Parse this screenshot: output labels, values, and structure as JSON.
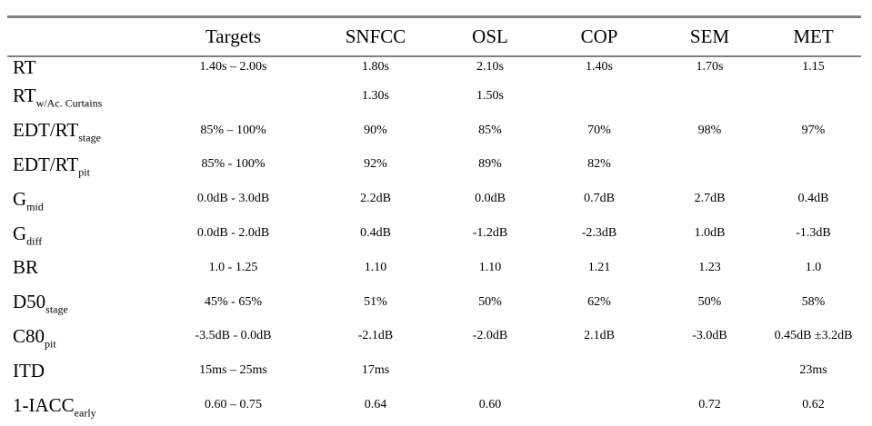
{
  "table": {
    "headers": [
      "",
      "Targets",
      "SNFCC",
      "OSL",
      "COP",
      "SEM",
      "MET"
    ],
    "rows": [
      {
        "param": "RT",
        "sub": "",
        "values": [
          "1.40s – 2.00s",
          "1.80s",
          "2.10s",
          "1.40s",
          "1.70s",
          "1.15"
        ]
      },
      {
        "param": "RT",
        "sub": "w/Ac. Curtains",
        "values": [
          "",
          "1.30s",
          "1.50s",
          "",
          "",
          ""
        ]
      },
      {
        "param": "EDT/RT",
        "sub": "stage",
        "values": [
          "85% – 100%",
          "90%",
          "85%",
          "70%",
          "98%",
          "97%"
        ]
      },
      {
        "param": "EDT/RT",
        "sub": "pit",
        "values": [
          "85% - 100%",
          "92%",
          "89%",
          "82%",
          "",
          ""
        ]
      },
      {
        "param": "G",
        "sub": "mid",
        "values": [
          "0.0dB - 3.0dB",
          "2.2dB",
          "0.0dB",
          "0.7dB",
          "2.7dB",
          "0.4dB"
        ]
      },
      {
        "param": "G",
        "sub": "diff",
        "values": [
          "0.0dB - 2.0dB",
          "0.4dB",
          "-1.2dB",
          "-2.3dB",
          "1.0dB",
          "-1.3dB"
        ]
      },
      {
        "param": "BR",
        "sub": "",
        "values": [
          "1.0 - 1.25",
          "1.10",
          "1.10",
          "1.21",
          "1.23",
          "1.0"
        ]
      },
      {
        "param": "D50",
        "sub": "stage",
        "values": [
          "45% - 65%",
          "51%",
          "50%",
          "62%",
          "50%",
          "58%"
        ]
      },
      {
        "param": "C80",
        "sub": "pit",
        "values": [
          "-3.5dB - 0.0dB",
          "-2.1dB",
          "-2.0dB",
          "2.1dB",
          "-3.0dB",
          "0.45dB ±3.2dB"
        ]
      },
      {
        "param": "ITD",
        "sub": "",
        "values": [
          "15ms – 25ms",
          "17ms",
          "",
          "",
          "",
          "23ms"
        ]
      },
      {
        "param": "1-IACC",
        "sub": "early",
        "values": [
          "0.60 – 0.75",
          "0.64",
          "0.60",
          "",
          "0.72",
          "0.62"
        ]
      }
    ]
  }
}
